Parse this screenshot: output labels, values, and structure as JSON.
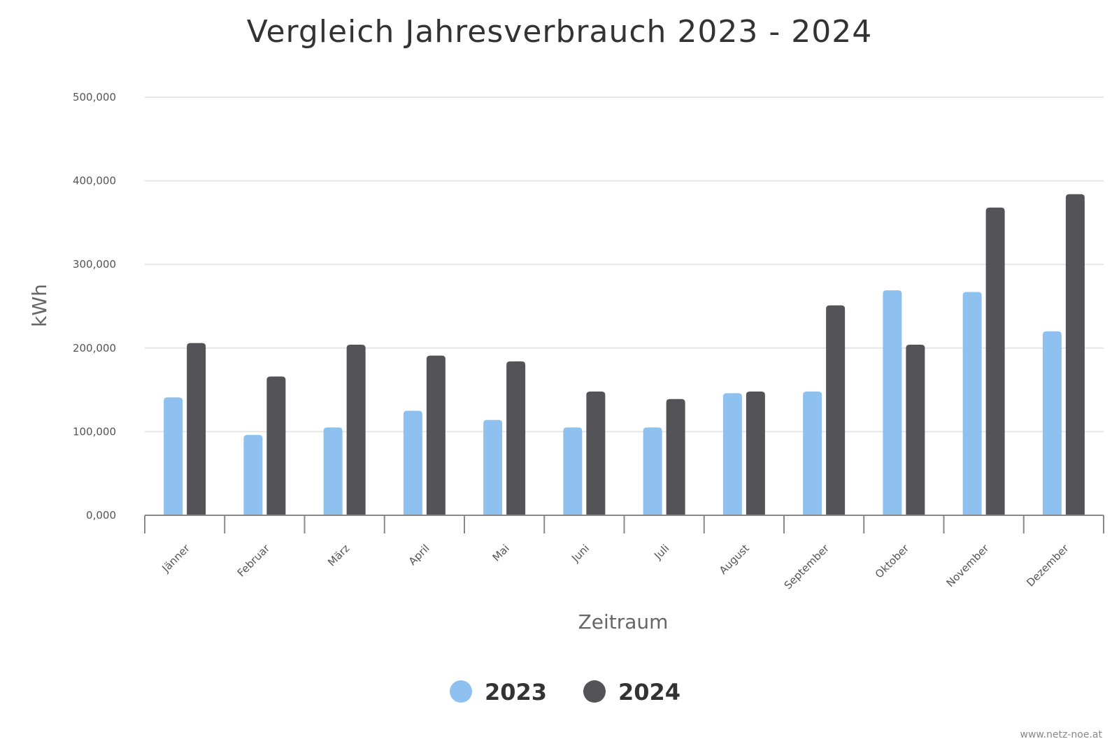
{
  "chart_data": {
    "type": "bar",
    "title": "Vergleich Jahresverbrauch 2023 - 2024",
    "xlabel": "Zeitraum",
    "ylabel": "kWh",
    "ylim": [
      0,
      500000
    ],
    "y_ticks": [
      0,
      100000,
      200000,
      300000,
      400000,
      500000
    ],
    "y_tick_labels": [
      "0,000",
      "100,000",
      "200,000",
      "300,000",
      "400,000",
      "500,000"
    ],
    "grid": true,
    "legend_position": "bottom-center",
    "categories": [
      "Jänner",
      "Februar",
      "März",
      "April",
      "Mai",
      "Juni",
      "Juli",
      "August",
      "September",
      "Oktober",
      "November",
      "Dezember"
    ],
    "series": [
      {
        "name": "2023",
        "color": "#8ec1ef",
        "values": [
          141000,
          96000,
          105000,
          125000,
          114000,
          105000,
          105000,
          146000,
          148000,
          269000,
          267000,
          220000
        ]
      },
      {
        "name": "2024",
        "color": "#545458",
        "values": [
          206000,
          166000,
          204000,
          191000,
          184000,
          148000,
          139000,
          148000,
          251000,
          204000,
          368000,
          384000
        ]
      }
    ]
  },
  "footer": {
    "credit": "www.netz-noe.at"
  }
}
